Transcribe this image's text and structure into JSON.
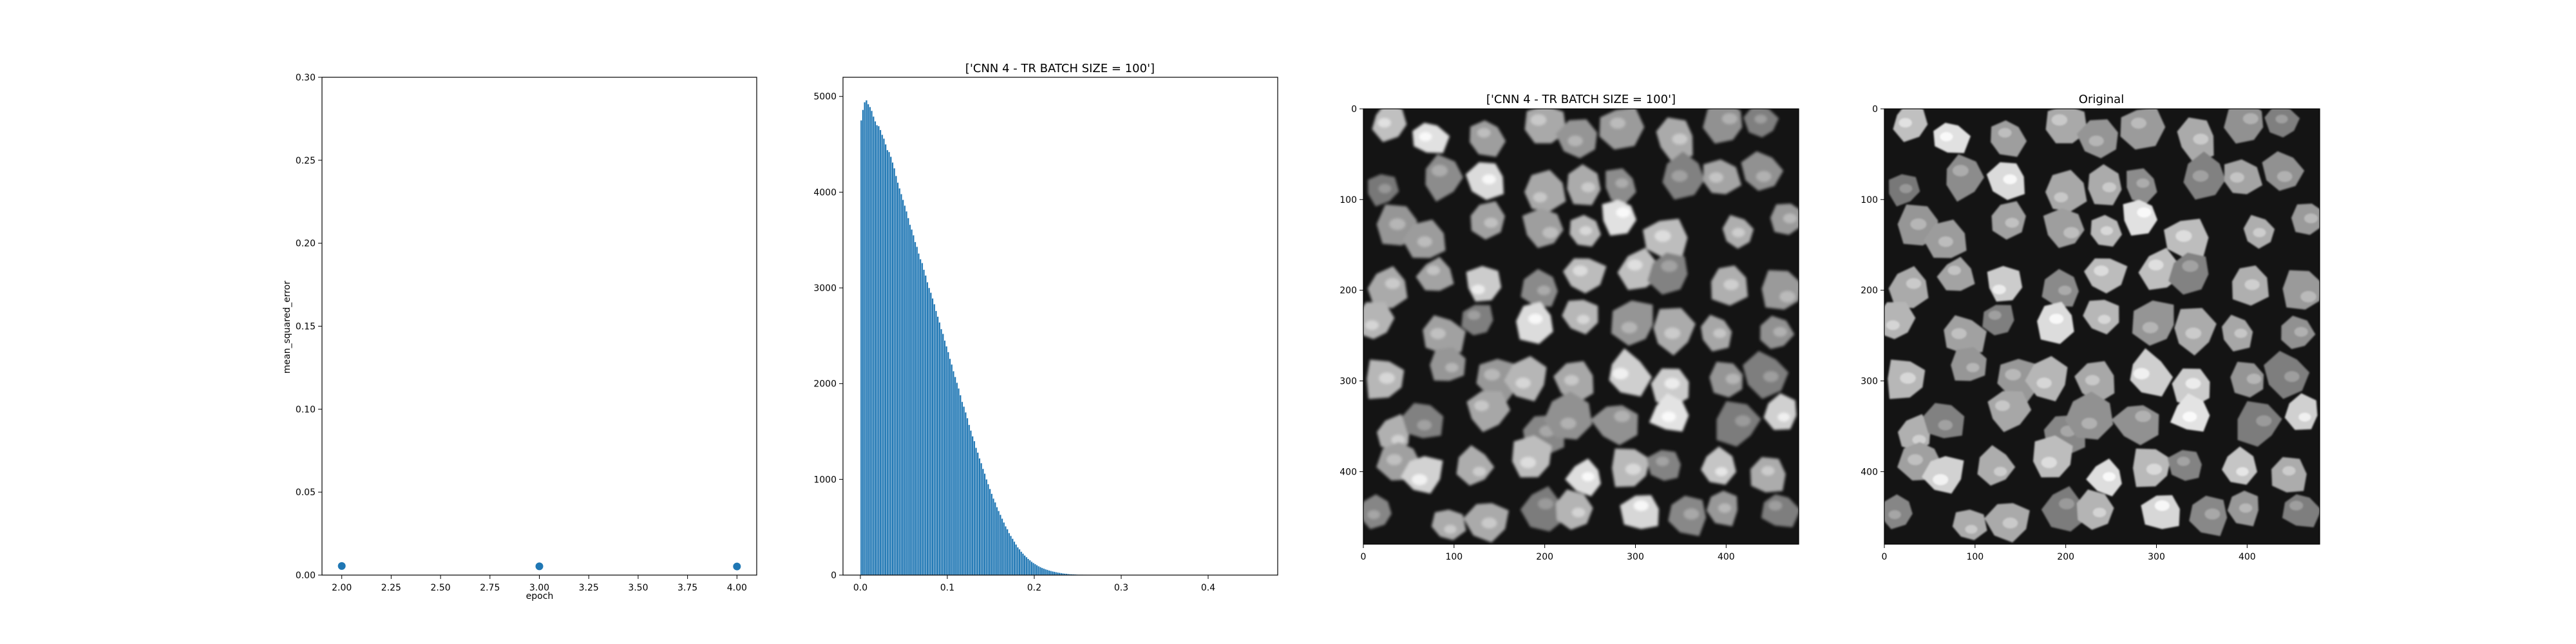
{
  "chart_data": [
    {
      "type": "scatter",
      "title": "",
      "xlabel": "epoch",
      "ylabel": "mean_squared_error",
      "xlim": [
        1.9,
        4.1
      ],
      "ylim": [
        0.0,
        0.3
      ],
      "x_ticks": [
        "2.00",
        "2.25",
        "2.50",
        "2.75",
        "3.00",
        "3.25",
        "3.50",
        "3.75",
        "4.00"
      ],
      "y_ticks": [
        "0.00",
        "0.05",
        "0.10",
        "0.15",
        "0.20",
        "0.25",
        "0.30"
      ],
      "grid": false,
      "color": "#1f77b4",
      "points": [
        {
          "x": 2.0,
          "y": 0.0055
        },
        {
          "x": 3.0,
          "y": 0.0053
        },
        {
          "x": 4.0,
          "y": 0.0052
        }
      ]
    },
    {
      "type": "bar",
      "title": "['CNN 4 - TR BATCH SIZE = 100']",
      "xlabel": "",
      "ylabel": "",
      "xlim": [
        -0.02,
        0.48
      ],
      "ylim": [
        0,
        5200
      ],
      "x_ticks": [
        "0.0",
        "0.1",
        "0.2",
        "0.3",
        "0.4"
      ],
      "y_ticks": [
        "0",
        "1000",
        "2000",
        "3000",
        "4000",
        "5000"
      ],
      "grid": false,
      "color": "#1f77b4",
      "bin_start": 0.0,
      "bin_width": 0.002,
      "values": [
        4750,
        4860,
        4940,
        4960,
        4920,
        4890,
        4850,
        4790,
        4740,
        4700,
        4690,
        4650,
        4600,
        4560,
        4500,
        4440,
        4420,
        4370,
        4310,
        4250,
        4170,
        4100,
        4040,
        3980,
        3920,
        3860,
        3800,
        3730,
        3660,
        3610,
        3550,
        3480,
        3430,
        3360,
        3300,
        3260,
        3190,
        3130,
        3060,
        3000,
        2950,
        2890,
        2830,
        2760,
        2700,
        2640,
        2570,
        2520,
        2450,
        2390,
        2330,
        2260,
        2200,
        2130,
        2070,
        2010,
        1950,
        1880,
        1810,
        1760,
        1700,
        1640,
        1570,
        1510,
        1450,
        1400,
        1330,
        1280,
        1220,
        1170,
        1110,
        1060,
        1000,
        950,
        900,
        850,
        800,
        760,
        710,
        670,
        630,
        590,
        550,
        510,
        480,
        440,
        410,
        380,
        350,
        320,
        290,
        270,
        245,
        225,
        205,
        188,
        170,
        155,
        140,
        127,
        115,
        104,
        93,
        84,
        75,
        68,
        61,
        55,
        49,
        44,
        39,
        35,
        31,
        27,
        24,
        21,
        18,
        16,
        14,
        12,
        10,
        9,
        8,
        7,
        6,
        5,
        4,
        4,
        3,
        3,
        2,
        2,
        2,
        1,
        1,
        1,
        1,
        1,
        1,
        1,
        1,
        1,
        1,
        1,
        1,
        1,
        1,
        1,
        1,
        1,
        1,
        1,
        1,
        1,
        1,
        1,
        1,
        1,
        1,
        1,
        1,
        1,
        1,
        1,
        1,
        1,
        1,
        1,
        1,
        1,
        1,
        1,
        1,
        1,
        1,
        1,
        1,
        1,
        1,
        1,
        1,
        1,
        1,
        1,
        1,
        1,
        1,
        1,
        1,
        1,
        1,
        1,
        1,
        1,
        1,
        1,
        1,
        1,
        1,
        1,
        1,
        1,
        1,
        1,
        1,
        1,
        1,
        1,
        1,
        1,
        1,
        1,
        1,
        1,
        1,
        1,
        1,
        1,
        1,
        1,
        1,
        1,
        1,
        1,
        1,
        1,
        1,
        1,
        1
      ]
    },
    {
      "type": "heatmap",
      "title": "['CNN 4 - TR BATCH SIZE = 100']",
      "xlim": [
        0,
        480
      ],
      "ylim": [
        480,
        0
      ],
      "x_ticks": [
        "0",
        "100",
        "200",
        "300",
        "400"
      ],
      "y_ticks": [
        "0",
        "100",
        "200",
        "300",
        "400"
      ],
      "colormap": "gray",
      "seed": 7
    },
    {
      "type": "heatmap",
      "title": "Original",
      "xlim": [
        0,
        480
      ],
      "ylim": [
        480,
        0
      ],
      "x_ticks": [
        "0",
        "100",
        "200",
        "300",
        "400"
      ],
      "y_ticks": [
        "0",
        "100",
        "200",
        "300",
        "400"
      ],
      "colormap": "gray",
      "seed": 7
    }
  ]
}
